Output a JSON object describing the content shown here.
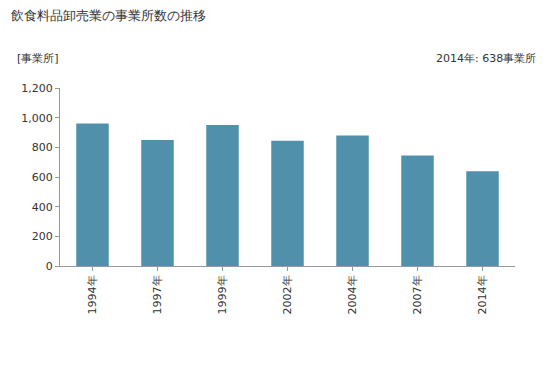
{
  "chart_data": {
    "type": "bar",
    "title": "飲食料品卸売業の事業所数の推移",
    "y_label": "[事業所]",
    "annotations": [
      "2014年: 638事業所"
    ],
    "categories": [
      "1994年",
      "1997年",
      "1999年",
      "2002年",
      "2004年",
      "2007年",
      "2014年"
    ],
    "values": [
      960,
      850,
      950,
      845,
      880,
      745,
      638
    ],
    "color": "#5090aa",
    "ylim": [
      0,
      1200
    ],
    "yticks": [
      0,
      200,
      400,
      600,
      800,
      {
        "value": 1000,
        "label": "1,000"
      },
      {
        "value": 1200,
        "label": "1,200"
      }
    ],
    "grid": false
  }
}
